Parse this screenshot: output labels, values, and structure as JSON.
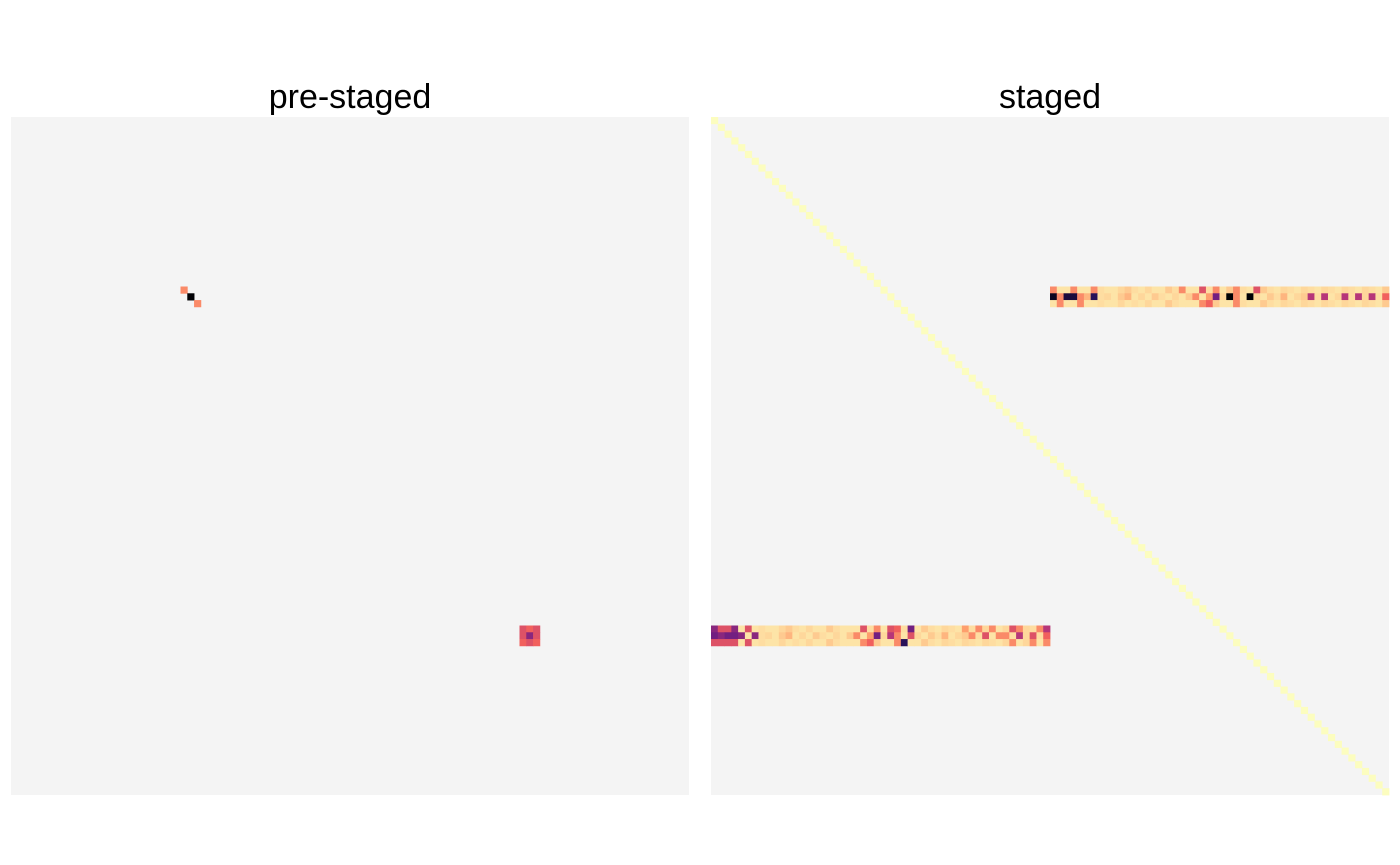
{
  "chart_data": [
    {
      "type": "heatmap",
      "title": "pre-staged",
      "grid": false,
      "legend": "none",
      "background_color": "#f4f4f4",
      "matrix_size": 100,
      "cells": [
        {
          "row": 25,
          "col": 25,
          "value": 0.7
        },
        {
          "row": 26,
          "col": 26,
          "value": 0.0
        },
        {
          "row": 27,
          "col": 27,
          "value": 0.7
        },
        {
          "row": 75,
          "col": 75,
          "value": 0.55
        },
        {
          "row": 75,
          "col": 76,
          "value": 0.6
        },
        {
          "row": 75,
          "col": 77,
          "value": 0.55
        },
        {
          "row": 76,
          "col": 75,
          "value": 0.55
        },
        {
          "row": 76,
          "col": 76,
          "value": 0.35
        },
        {
          "row": 76,
          "col": 77,
          "value": 0.55
        },
        {
          "row": 77,
          "col": 75,
          "value": 0.6
        },
        {
          "row": 77,
          "col": 76,
          "value": 0.55
        },
        {
          "row": 77,
          "col": 77,
          "value": 0.6
        }
      ]
    },
    {
      "type": "heatmap",
      "title": "staged",
      "grid": false,
      "legend": "none",
      "background_color": "#f4f4f4",
      "matrix_size": 100,
      "diagonal_value": 1.0,
      "bands": [
        {
          "rows": [
            25,
            26,
            27
          ],
          "col_start": 50,
          "values": [
            [
              0.7,
              0.92,
              0.92,
              0.7,
              0.92,
              0.92,
              0.7,
              0.9,
              0.92,
              0.92,
              0.88,
              0.85,
              0.9,
              0.92,
              0.88,
              0.92,
              0.92,
              0.85,
              0.9,
              0.7,
              0.92,
              0.92,
              0.55,
              0.9,
              0.7,
              0.92,
              0.85,
              0.7,
              0.9,
              0.92,
              0.55,
              0.85,
              0.9,
              0.92,
              0.88,
              0.9,
              0.92,
              0.88,
              0.9,
              0.92,
              0.88,
              0.9,
              0.92,
              0.88,
              0.9,
              0.92,
              0.88,
              0.9,
              0.92,
              0.85
            ],
            [
              0.05,
              0.7,
              0.1,
              0.1,
              0.7,
              0.8,
              0.15,
              0.9,
              0.88,
              0.92,
              0.85,
              0.8,
              0.92,
              0.88,
              0.92,
              0.85,
              0.9,
              0.92,
              0.88,
              0.92,
              0.85,
              0.7,
              0.92,
              0.75,
              0.3,
              0.88,
              0.0,
              0.7,
              0.92,
              0.0,
              0.88,
              0.92,
              0.85,
              0.9,
              0.8,
              0.92,
              0.88,
              0.85,
              0.45,
              0.9,
              0.45,
              0.92,
              0.88,
              0.45,
              0.9,
              0.45,
              0.88,
              0.45,
              0.9,
              0.6
            ],
            [
              0.92,
              0.7,
              0.92,
              0.92,
              0.7,
              0.92,
              0.92,
              0.9,
              0.92,
              0.92,
              0.88,
              0.92,
              0.9,
              0.92,
              0.88,
              0.92,
              0.92,
              0.85,
              0.9,
              0.92,
              0.92,
              0.92,
              0.7,
              0.6,
              0.85,
              0.92,
              0.92,
              0.7,
              0.9,
              0.92,
              0.92,
              0.85,
              0.9,
              0.92,
              0.88,
              0.9,
              0.92,
              0.88,
              0.9,
              0.92,
              0.88,
              0.9,
              0.92,
              0.88,
              0.9,
              0.92,
              0.88,
              0.9,
              0.92,
              0.85
            ]
          ]
        },
        {
          "rows": [
            75,
            76,
            77
          ],
          "col_start": 0,
          "values": [
            [
              0.35,
              0.55,
              0.55,
              0.35,
              0.92,
              0.55,
              0.92,
              0.9,
              0.92,
              0.92,
              0.88,
              0.85,
              0.9,
              0.92,
              0.88,
              0.92,
              0.92,
              0.85,
              0.9,
              0.92,
              0.92,
              0.92,
              0.55,
              0.9,
              0.7,
              0.92,
              0.55,
              0.6,
              0.9,
              0.3,
              0.92,
              0.85,
              0.9,
              0.92,
              0.88,
              0.9,
              0.92,
              0.75,
              0.9,
              0.7,
              0.88,
              0.7,
              0.92,
              0.88,
              0.55,
              0.7,
              0.88,
              0.9,
              0.7,
              0.45
            ],
            [
              0.3,
              0.35,
              0.3,
              0.3,
              0.35,
              0.92,
              0.35,
              0.9,
              0.88,
              0.92,
              0.85,
              0.8,
              0.92,
              0.88,
              0.92,
              0.85,
              0.9,
              0.92,
              0.88,
              0.92,
              0.85,
              0.7,
              0.92,
              0.75,
              0.3,
              0.88,
              0.45,
              0.7,
              0.92,
              0.55,
              0.88,
              0.92,
              0.85,
              0.9,
              0.8,
              0.92,
              0.88,
              0.85,
              0.7,
              0.9,
              0.55,
              0.92,
              0.7,
              0.7,
              0.9,
              0.45,
              0.88,
              0.55,
              0.9,
              0.6
            ],
            [
              0.55,
              0.55,
              0.55,
              0.55,
              0.92,
              0.55,
              0.92,
              0.9,
              0.92,
              0.92,
              0.88,
              0.92,
              0.9,
              0.92,
              0.88,
              0.92,
              0.92,
              0.85,
              0.9,
              0.92,
              0.92,
              0.92,
              0.7,
              0.6,
              0.85,
              0.92,
              0.92,
              0.7,
              0.15,
              0.92,
              0.92,
              0.85,
              0.9,
              0.92,
              0.88,
              0.9,
              0.92,
              0.88,
              0.9,
              0.92,
              0.88,
              0.9,
              0.92,
              0.88,
              0.7,
              0.92,
              0.88,
              0.7,
              0.92,
              0.7
            ]
          ]
        }
      ]
    }
  ]
}
